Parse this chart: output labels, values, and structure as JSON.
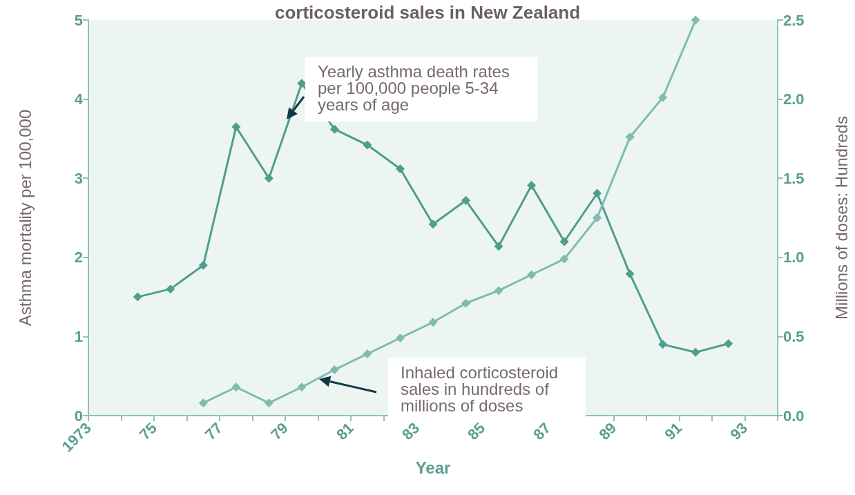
{
  "chart_data": {
    "type": "line",
    "title": "corticosteroid sales in New Zealand",
    "xlabel": "Year",
    "ylabel": "Asthma mortality per 100,000",
    "y2label": "Millions of doses: Hundreds",
    "x": [
      1974.5,
      1975.5,
      1976.5,
      1977.5,
      1978.5,
      1979.5,
      1980.5,
      1981.5,
      1982.5,
      1983.5,
      1984.5,
      1985.5,
      1986.5,
      1987.5,
      1988.5,
      1989.5,
      1990.5,
      1991.5,
      1992.5
    ],
    "series": [
      {
        "color": "#4e9e8e",
        "values": [
          1.5,
          1.6,
          1.9,
          3.65,
          3.0,
          4.2,
          3.62,
          3.42,
          3.12,
          2.42,
          2.72,
          2.14,
          2.91,
          2.2,
          2.81,
          1.79,
          0.9,
          0.8,
          0.91
        ]
      },
      {
        "color": "#7dbcae",
        "axis": "y2",
        "values": [
          null,
          null,
          0.08,
          0.18,
          0.08,
          0.18,
          0.29,
          0.39,
          0.49,
          0.59,
          0.71,
          0.79,
          0.89,
          0.99,
          1.25,
          1.76,
          2.01,
          2.5,
          null
        ]
      }
    ],
    "annotations": [
      "Yearly asthma death rates\nper 100,000 people 5-34\nyears of age",
      "Inhaled corticosteroid\nsales in hundreds of\nmillions of doses"
    ],
    "xlim": [
      1973,
      1994
    ],
    "xticks": [
      1973,
      {
        "value": 1974,
        "label": null
      },
      {
        "value": 1975,
        "label": "75"
      },
      {
        "value": 1976,
        "label": null
      },
      {
        "value": 1977,
        "label": "77"
      },
      {
        "value": 1978,
        "label": null
      },
      {
        "value": 1979,
        "label": "79"
      },
      {
        "value": 1980,
        "label": null
      },
      {
        "value": 1981,
        "label": "81"
      },
      {
        "value": 1982,
        "label": null
      },
      {
        "value": 1983,
        "label": "83"
      },
      {
        "value": 1984,
        "label": null
      },
      {
        "value": 1985,
        "label": "85"
      },
      {
        "value": 1986,
        "label": null
      },
      {
        "value": 1987,
        "label": "87"
      },
      {
        "value": 1988,
        "label": null
      },
      {
        "value": 1989,
        "label": "89"
      },
      {
        "value": 1990,
        "label": null
      },
      {
        "value": 1991,
        "label": "91"
      },
      {
        "value": 1992,
        "label": null
      },
      {
        "value": 1993,
        "label": "93"
      },
      {
        "value": 1994,
        "label": null
      }
    ],
    "ylim": [
      0,
      5
    ],
    "yticks": [
      0,
      1,
      2,
      3,
      4,
      5
    ],
    "y2lim": [
      0,
      2.5
    ],
    "y2ticks": [
      {
        "value": 0,
        "label": "0.0"
      },
      0.5,
      {
        "value": 1,
        "label": "1.0"
      },
      1.5,
      {
        "value": 2,
        "label": "2.0"
      },
      2.5
    ],
    "marker": "diamond",
    "line_style": "solid"
  }
}
